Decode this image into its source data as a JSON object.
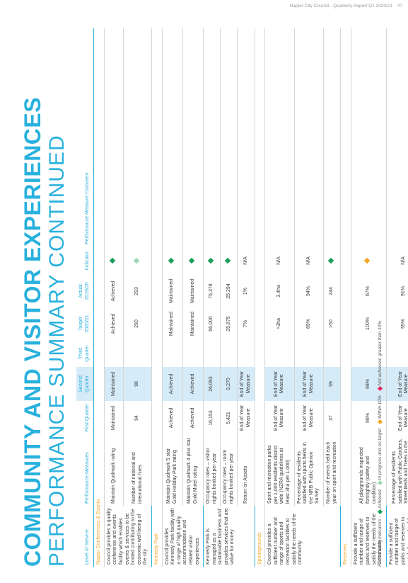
{
  "header": {
    "report_title": "Napier City Council - Quarterly Report Q1 2020/21",
    "page_number": "47"
  },
  "title": {
    "main": "COMMUNITY AND VISITOR EXPERIENCES",
    "sub": "PERFORMANCE SUMMARY CONTINUED"
  },
  "colors": {
    "accent": "#29b1dd",
    "section": "#f5a623",
    "highlight": "#d5ebf7",
    "achieved": "#1a9e5a",
    "in_progress": "#9fd8b4",
    "within_10": "#f5a623",
    "not_achieved": "#e0245e"
  },
  "table": {
    "headers": {
      "level": "Level of Service",
      "measure": "Performance Measures",
      "q1": "First Quarter",
      "q2": "Second Quarter",
      "q3": "Third Quarter",
      "target": "Target 2020/21",
      "actual": "Actual 2019/20",
      "indicator": "Indicator",
      "comment": "Performance Measure Comment"
    },
    "sections": [
      {
        "name": "Napier Conferences & Events",
        "level": "Council provides a quality conference and events facility which enables events & services to be hosted contributing to the economic well-being of the city",
        "rows": [
          {
            "measure": "Maintain Qualmark rating",
            "q1": "Maintained",
            "q2": "Maintained",
            "q3": "",
            "target": "Achieved",
            "actual": "Achieved",
            "indicator": "achieved"
          },
          {
            "measure": "Number of national and international hires",
            "q1": "94",
            "q2": "98",
            "q3": "",
            "target": "290",
            "actual": "293",
            "indicator": "in_progress"
          }
        ]
      },
      {
        "name": "Kennedy Park",
        "level": "Council provides Kennedy Park facility with a range of high quality accommodation and related visitor experiences",
        "rows": [
          {
            "measure": "Maintain Qualmark 5 star Gold Holiday Park rating",
            "q1": "Achieved",
            "q2": "Achieved",
            "q3": "",
            "target": "Maintained",
            "actual": "Maintained",
            "indicator": "achieved"
          },
          {
            "measure": "Maintain Qualmark 4 plus star Gold Motel rating",
            "q1": "Achieved",
            "q2": "Achieved",
            "q3": "",
            "target": "Maintained",
            "actual": "Maintained",
            "indicator": "achieved"
          }
        ]
      },
      {
        "name": "",
        "level": "Kennedy Park is managed as a sustainable business and provides services that are value for money",
        "rows": [
          {
            "measure": "Occupancy rates – visitor nights booked per year",
            "q1": "16,153",
            "q2": "26,093",
            "q3": "",
            "target": "66,000",
            "actual": "75,378",
            "indicator": "achieved"
          },
          {
            "measure": "Occupancy rates – room nights booked per year",
            "q1": "5,421",
            "q2": "9,270",
            "q3": "",
            "target": "25,875",
            "actual": "25,294",
            "indicator": "achieved"
          },
          {
            "measure": "Return on Assets",
            "q1": "End of Year Measure",
            "q2": "End of Year Measure",
            "q3": "",
            "target": "7%",
            "actual": "1%",
            "indicator": "N/A"
          }
        ]
      },
      {
        "name": "Sportsgrounds",
        "level": "Council provides a sufficient number and range of sports and recreation facilities to satisfy the needs of the community",
        "rows": [
          {
            "measure": "Sport and recreation parks per 1,000 residents district wide (NZRA guidelines at least 3ha per 1,000)",
            "q1": "End of Year Measure",
            "q2": "End of Year Measure",
            "q3": "",
            "target": ">3ha",
            "actual": "3.4ha",
            "indicator": "N/A"
          },
          {
            "measure": "Percentage of residents satisfied with sports fields in the NRB Public Opinion Survey",
            "q1": "End of Year Measure",
            "q2": "End of Year Measure",
            "q3": "",
            "target": "89%",
            "actual": "94%",
            "indicator": "N/A"
          },
          {
            "measure": "Number of events held each year on sport and recreation",
            "q1": "37",
            "q2": "59",
            "q3": "",
            "target": ">50",
            "actual": "244",
            "indicator": "achieved"
          }
        ]
      },
      {
        "name": "Reserves",
        "level": "Provide a sufficient number and range of parks and reserves to satisfy the needs of the Community",
        "rows": [
          {
            "measure": "All playgrounds inspected fortnightly (safety and condition)",
            "q1": "98%",
            "q2": "98%",
            "q3": "",
            "target": "100%",
            "actual": "67%",
            "indicator": "within_10"
          }
        ]
      },
      {
        "name": "",
        "level": "Provide a sufficient number and range of parks and reserves to satisfy the needs of the Community",
        "rows": [
          {
            "measure": "Percentage of residents satisfied with Public Gardens, Street Beds and Trees in the NRB Opinion Survey",
            "q1": "End of Year Measure",
            "q2": "End of Year Measure",
            "q3": "",
            "target": "95%",
            "actual": "91%",
            "indicator": "N/A"
          }
        ]
      }
    ]
  },
  "legend": {
    "prefix": "Performance Indicators",
    "items": [
      {
        "label": "Achieved",
        "color": "#1a9e5a"
      },
      {
        "label": "In progress and on target",
        "color": "#9fd8b4"
      },
      {
        "label": "Within 10%",
        "color": "#f5a623"
      },
      {
        "label": "Not achieved, greater than 10%",
        "color": "#e0245e"
      }
    ]
  }
}
